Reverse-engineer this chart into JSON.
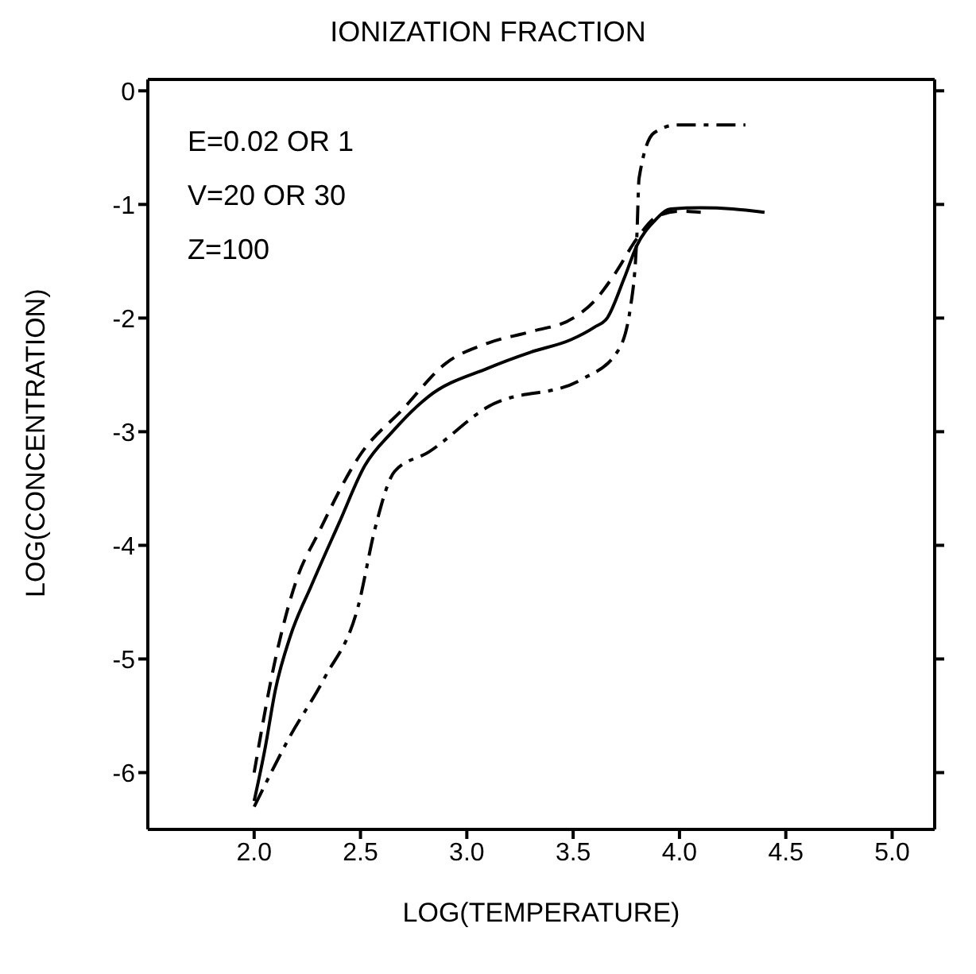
{
  "chart_data": {
    "type": "line",
    "title": "IONIZATION FRACTION",
    "xlabel": "LOG(TEMPERATURE)",
    "ylabel": "LOG(CONCENTRATION)",
    "annotations": [
      "E=0.02 OR 1",
      "V=20 OR 30",
      "Z=100"
    ],
    "xlim": [
      1.5,
      5.2
    ],
    "ylim": [
      -6.5,
      0.1
    ],
    "xticks": [
      {
        "value": 2,
        "label": "2.0"
      },
      {
        "value": 2.5,
        "label": "2.5"
      },
      {
        "value": 3,
        "label": "3.0"
      },
      {
        "value": 3.5,
        "label": "3.5"
      },
      {
        "value": 4,
        "label": "4.0"
      },
      {
        "value": 4.5,
        "label": "4.5"
      },
      {
        "value": 5,
        "label": "5.0"
      }
    ],
    "yticks": [
      0,
      -1,
      -2,
      -3,
      -4,
      -5,
      -6
    ],
    "legend": false,
    "marker": "none",
    "series": [
      {
        "color": "#000000",
        "line_style": "solid",
        "x": [
          2.0,
          2.05,
          2.1,
          2.17,
          2.27,
          2.4,
          2.52,
          2.65,
          2.82,
          3.1,
          3.3,
          3.49,
          3.6,
          3.66,
          3.74,
          3.8,
          3.88,
          3.96,
          4.1,
          4.25,
          4.4
        ],
        "values": [
          -6.25,
          -5.8,
          -5.27,
          -4.8,
          -4.35,
          -3.8,
          -3.3,
          -3.0,
          -2.69,
          -2.44,
          -2.3,
          -2.19,
          -2.08,
          -2.0,
          -1.65,
          -1.36,
          -1.15,
          -1.04,
          -1.03,
          -1.04,
          -1.07
        ]
      },
      {
        "color": "#000000",
        "line_style": "dashed",
        "x": [
          2.0,
          2.1,
          2.2,
          2.3,
          2.5,
          2.7,
          2.9,
          3.1,
          3.3,
          3.5,
          3.6,
          3.7,
          3.8,
          3.9,
          4.0,
          4.1
        ],
        "values": [
          -6.0,
          -5.0,
          -4.3,
          -3.9,
          -3.2,
          -2.8,
          -2.4,
          -2.22,
          -2.12,
          -2.0,
          -1.85,
          -1.6,
          -1.3,
          -1.1,
          -1.06,
          -1.07
        ]
      },
      {
        "color": "#000000",
        "line_style": "dashdot",
        "x": [
          2.0,
          2.08,
          2.16,
          2.33,
          2.49,
          2.57,
          2.66,
          2.82,
          3.1,
          3.54,
          3.71,
          3.77,
          3.8,
          3.81,
          3.88,
          3.99,
          4.31
        ],
        "values": [
          -6.3,
          -6.0,
          -5.71,
          -5.17,
          -4.53,
          -3.84,
          -3.35,
          -3.18,
          -2.78,
          -2.54,
          -2.29,
          -1.9,
          -1.26,
          -0.77,
          -0.37,
          -0.3,
          -0.3
        ]
      }
    ]
  }
}
